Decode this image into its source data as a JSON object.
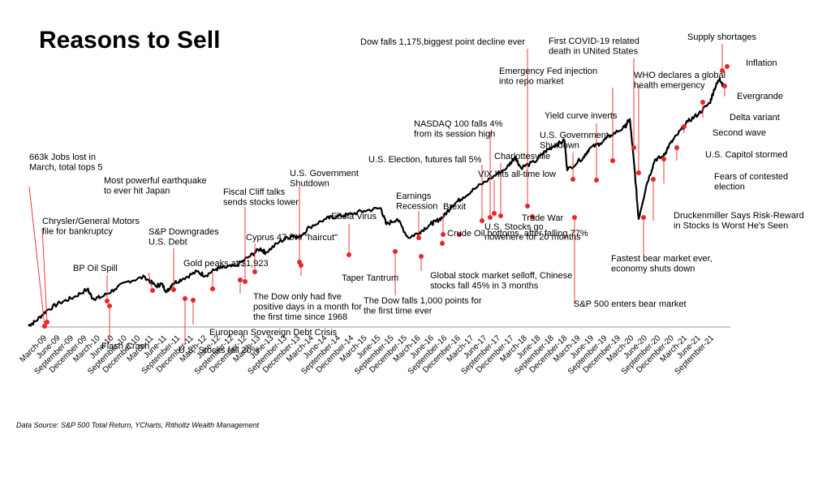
{
  "chart_data": {
    "type": "line",
    "title": "Reasons to Sell",
    "source": "Data Source: S&P 500 Total Return, YCharts, Ritholtz Wealth Management",
    "x_ticks": [
      "March-09",
      "June-09",
      "September-09",
      "December-09",
      "March-10",
      "June-10",
      "September-10",
      "December-10",
      "March-11",
      "June-11",
      "September-11",
      "December-11",
      "March-12",
      "June-12",
      "September-12",
      "December-12",
      "March-13",
      "June-13",
      "September-13",
      "December-13",
      "March-14",
      "June-14",
      "September-14",
      "December-14",
      "March-15",
      "June-15",
      "September-15",
      "December-15",
      "March-16",
      "June-16",
      "September-16",
      "December-16",
      "March-17",
      "June-17",
      "September-17",
      "December-17",
      "March-18",
      "June-18",
      "September-18",
      "December-18",
      "March-19",
      "June-19",
      "September-19",
      "December-19",
      "March-20",
      "June-20",
      "September-20",
      "December-20",
      "March-21",
      "June-21",
      "September-21"
    ],
    "xlim": [
      2009.1,
      2021.9
    ],
    "ylim": [
      0,
      100
    ],
    "series": [
      {
        "x": [
          2009.17,
          2009.3,
          2009.5,
          2009.75,
          2010.0,
          2010.25,
          2010.35,
          2010.5,
          2010.75,
          2011.0,
          2011.3,
          2011.5,
          2011.6,
          2011.7,
          2011.8,
          2012.0,
          2012.25,
          2012.4,
          2012.6,
          2012.75,
          2012.95,
          2013.2,
          2013.4,
          2013.5,
          2013.75,
          2014.0,
          2014.1,
          2014.3,
          2014.6,
          2014.8,
          2015.0,
          2015.3,
          2015.6,
          2015.7,
          2015.9,
          2016.1,
          2016.3,
          2016.5,
          2016.6,
          2016.75,
          2016.9,
          2017.1,
          2017.3,
          2017.6,
          2017.9,
          2018.05,
          2018.15,
          2018.4,
          2018.6,
          2018.75,
          2018.95,
          2019.0,
          2019.3,
          2019.4,
          2019.6,
          2019.8,
          2020.05,
          2020.14,
          2020.22,
          2020.3,
          2020.45,
          2020.6,
          2020.75,
          2020.85,
          2021.0,
          2021.2,
          2021.4,
          2021.6,
          2021.68,
          2021.78,
          2021.85
        ],
        "values": [
          0.5,
          2,
          6,
          9,
          11,
          14,
          10.5,
          11,
          14,
          17,
          18.5,
          15,
          16,
          13,
          16,
          18,
          20.5,
          19,
          21.5,
          22,
          22.5,
          26,
          29,
          27.5,
          31.5,
          34,
          33,
          37,
          40,
          41,
          41.5,
          43,
          44,
          38,
          40,
          33,
          35,
          38,
          39,
          41,
          45,
          48,
          51,
          55,
          59,
          63,
          59,
          61,
          65,
          67,
          69,
          58,
          63,
          66,
          68,
          71,
          74,
          77,
          60,
          40,
          53,
          62,
          63,
          67,
          71,
          76,
          79,
          83,
          88,
          92,
          89
        ]
      }
    ],
    "annotations": [
      {
        "label": [
          "663k Jobs lost in",
          "March, total tops 5"
        ]
      },
      {
        "label": [
          "Chrysler/General Motors",
          "file for bankruptcy"
        ]
      },
      {
        "label": [
          "BP Oil Spill"
        ]
      },
      {
        "label": [
          "Flash Crash"
        ]
      },
      {
        "label": [
          "Most powerful earthquake",
          "to ever hit Japan"
        ]
      },
      {
        "label": [
          "S&P Downgrades",
          "U.S. Debt"
        ]
      },
      {
        "label": [
          "U.S. Stocks fall 20%"
        ]
      },
      {
        "label": [
          "European Sovereign Debt Crisis"
        ]
      },
      {
        "label": [
          "Gold peaks at $1,923"
        ]
      },
      {
        "label": [
          "Fiscal Cliff talks",
          "sends stocks lower"
        ]
      },
      {
        "label": [
          "The Dow only had five",
          "positive days in a month for",
          "the first time since 1968"
        ]
      },
      {
        "label": [
          "Cyprus 47.5% \"haircut\""
        ]
      },
      {
        "label": [
          "U.S. Government",
          "Shutdown"
        ]
      },
      {
        "label": [
          "Taper Tantrum"
        ]
      },
      {
        "label": [
          "Ebola Virus"
        ]
      },
      {
        "label": [
          "The Dow falls 1,000 points for",
          "the first time ever"
        ]
      },
      {
        "label": [
          "Earnings",
          "Recession"
        ]
      },
      {
        "label": [
          "Global stock market selloff, Chinese",
          "stocks fall 45% in 3 months"
        ]
      },
      {
        "label": [
          "Crude Oil bottoms, after falling 77%"
        ]
      },
      {
        "label": [
          "Brexit"
        ]
      },
      {
        "label": [
          "U.S. Stocks go",
          "nowehere for 20 months"
        ]
      },
      {
        "label": [
          "U.S. Election, futures fall 5%"
        ]
      },
      {
        "label": [
          "NASDAQ 100 falls 4%",
          "from its  session high"
        ]
      },
      {
        "label": [
          "Charlottesville"
        ]
      },
      {
        "label": [
          "VIX hits all-time low"
        ]
      },
      {
        "label": [
          "Dow falls 1,175,biggest point decline ever"
        ]
      },
      {
        "label": [
          "Trade War"
        ]
      },
      {
        "label": [
          "S&P 500 enters bear market"
        ]
      },
      {
        "label": [
          "U.S. Government",
          "Shutdown"
        ]
      },
      {
        "label": [
          "Yield curve inverts"
        ]
      },
      {
        "label": [
          "Emergency Fed injection",
          "into repo market"
        ]
      },
      {
        "label": [
          "First COVID-19 related",
          "death in UNited States"
        ]
      },
      {
        "label": [
          "WHO declares a global",
          "health emergency"
        ]
      },
      {
        "label": [
          "Fastest bear market ever,",
          "economy shuts down"
        ]
      },
      {
        "label": [
          "Druckenmiller Says Risk-Reward",
          "in Stocks Is Worst He's Seen"
        ]
      },
      {
        "label": [
          "Fears of contested",
          "election"
        ]
      },
      {
        "label": [
          "U.S. Capitol stormed"
        ]
      },
      {
        "label": [
          "Second wave"
        ]
      },
      {
        "label": [
          "Delta variant"
        ]
      },
      {
        "label": [
          "Evergrande"
        ]
      },
      {
        "label": [
          "Inflation"
        ]
      },
      {
        "label": [
          "Supply shortages"
        ]
      }
    ],
    "colors": {
      "line": "#000000",
      "marker": "#e8262a",
      "baseline": "#9a9a9a"
    }
  }
}
